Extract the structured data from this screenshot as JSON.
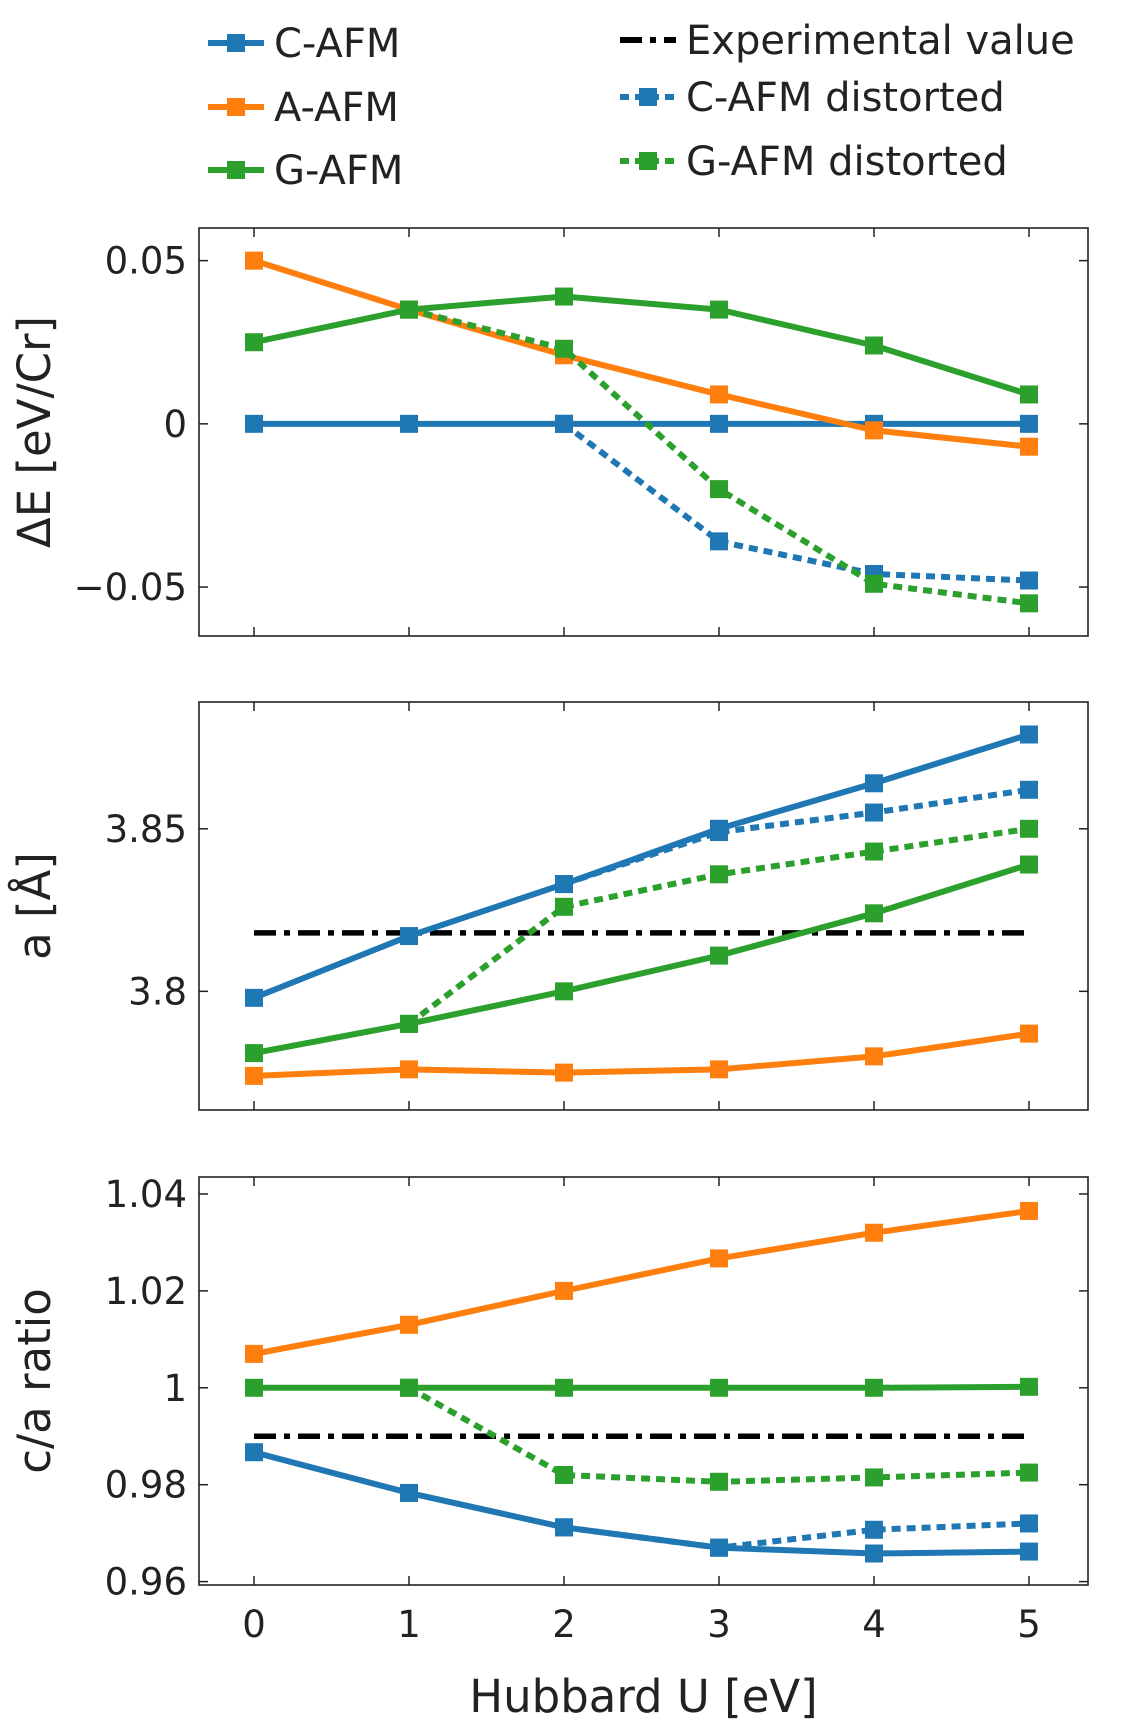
{
  "legend": {
    "left": [
      {
        "label": "C-AFM",
        "color": "#1f77b4",
        "dash": "solid"
      },
      {
        "label": "A-AFM",
        "color": "#ff7f0e",
        "dash": "solid"
      },
      {
        "label": "G-AFM",
        "color": "#2ca02c",
        "dash": "solid"
      }
    ],
    "right": [
      {
        "label": "Experimental value",
        "color": "#000000",
        "dash": "dashdot"
      },
      {
        "label": "C-AFM distorted",
        "color": "#1f77b4",
        "dash": "dotted"
      },
      {
        "label": "G-AFM distorted",
        "color": "#2ca02c",
        "dash": "dotted"
      }
    ]
  },
  "chart_data": [
    {
      "type": "line",
      "ylabel": "ΔE [eV/Cr]",
      "x": [
        0,
        1,
        2,
        3,
        4,
        5
      ],
      "ylim": [
        -0.065,
        0.06
      ],
      "yticks": [
        0.05,
        0,
        -0.05
      ],
      "ytick_labels": [
        "0.05",
        "0",
        "−0.05"
      ],
      "series": [
        {
          "name": "C-AFM",
          "style": "solid",
          "color": "#1f77b4",
          "values": [
            0,
            0,
            0,
            0,
            0,
            0
          ]
        },
        {
          "name": "A-AFM",
          "style": "solid",
          "color": "#ff7f0e",
          "values": [
            0.05,
            0.035,
            0.021,
            0.009,
            -0.002,
            -0.007
          ]
        },
        {
          "name": "G-AFM",
          "style": "solid",
          "color": "#2ca02c",
          "values": [
            0.025,
            0.035,
            0.039,
            0.035,
            0.024,
            0.009
          ]
        },
        {
          "name": "C-AFM distorted",
          "style": "dotted",
          "color": "#1f77b4",
          "x": [
            2,
            3,
            4,
            5
          ],
          "values": [
            0,
            -0.036,
            -0.046,
            -0.048
          ]
        },
        {
          "name": "G-AFM distorted",
          "style": "dotted",
          "color": "#2ca02c",
          "x": [
            1,
            2,
            3,
            4,
            5
          ],
          "values": [
            0.035,
            0.023,
            -0.02,
            -0.049,
            -0.055
          ]
        }
      ]
    },
    {
      "type": "line",
      "ylabel": "a [Å]",
      "x": [
        0,
        1,
        2,
        3,
        4,
        5
      ],
      "ylim": [
        3.7635,
        3.889
      ],
      "yticks": [
        3.85,
        3.8
      ],
      "ytick_labels": [
        "3.85",
        "3.8"
      ],
      "experimental": 3.818,
      "series": [
        {
          "name": "C-AFM",
          "style": "solid",
          "color": "#1f77b4",
          "values": [
            3.798,
            3.817,
            3.833,
            3.85,
            3.864,
            3.879
          ]
        },
        {
          "name": "A-AFM",
          "style": "solid",
          "color": "#ff7f0e",
          "values": [
            3.774,
            3.776,
            3.775,
            3.776,
            3.78,
            3.787
          ]
        },
        {
          "name": "G-AFM",
          "style": "solid",
          "color": "#2ca02c",
          "values": [
            3.781,
            3.79,
            3.8,
            3.811,
            3.824,
            3.839
          ]
        },
        {
          "name": "C-AFM distorted",
          "style": "dotted",
          "color": "#1f77b4",
          "x": [
            2,
            3,
            4,
            5
          ],
          "values": [
            3.833,
            3.849,
            3.855,
            3.862
          ]
        },
        {
          "name": "G-AFM distorted",
          "style": "dotted",
          "color": "#2ca02c",
          "x": [
            1,
            2,
            3,
            4,
            5
          ],
          "values": [
            3.79,
            3.826,
            3.836,
            3.843,
            3.85
          ]
        }
      ]
    },
    {
      "type": "line",
      "ylabel": "c/a ratio",
      "xlabel": "Hubbard U [eV]",
      "x": [
        0,
        1,
        2,
        3,
        4,
        5
      ],
      "xtick_labels": [
        "0",
        "1",
        "2",
        "3",
        "4",
        "5"
      ],
      "ylim": [
        0.9593,
        1.0435
      ],
      "yticks": [
        1.04,
        1.02,
        1,
        0.98,
        0.96
      ],
      "ytick_labels": [
        "1.04",
        "1.02",
        "1",
        "0.98",
        "0.96"
      ],
      "experimental": 0.99,
      "series": [
        {
          "name": "C-AFM",
          "style": "solid",
          "color": "#1f77b4",
          "values": [
            0.9867,
            0.9783,
            0.9712,
            0.967,
            0.9658,
            0.9662
          ]
        },
        {
          "name": "A-AFM",
          "style": "solid",
          "color": "#ff7f0e",
          "values": [
            1.007,
            1.013,
            1.02,
            1.0267,
            1.032,
            1.0365
          ]
        },
        {
          "name": "G-AFM",
          "style": "solid",
          "color": "#2ca02c",
          "values": [
            1.0,
            1.0,
            1.0,
            1.0,
            1.0,
            1.0002
          ]
        },
        {
          "name": "C-AFM distorted",
          "style": "dotted",
          "color": "#1f77b4",
          "x": [
            2,
            3,
            4,
            5
          ],
          "values": [
            0.9712,
            0.967,
            0.9707,
            0.972
          ]
        },
        {
          "name": "G-AFM distorted",
          "style": "dotted",
          "color": "#2ca02c",
          "x": [
            1,
            2,
            3,
            4,
            5
          ],
          "values": [
            1.0,
            0.982,
            0.9806,
            0.9815,
            0.9825
          ]
        }
      ]
    }
  ]
}
